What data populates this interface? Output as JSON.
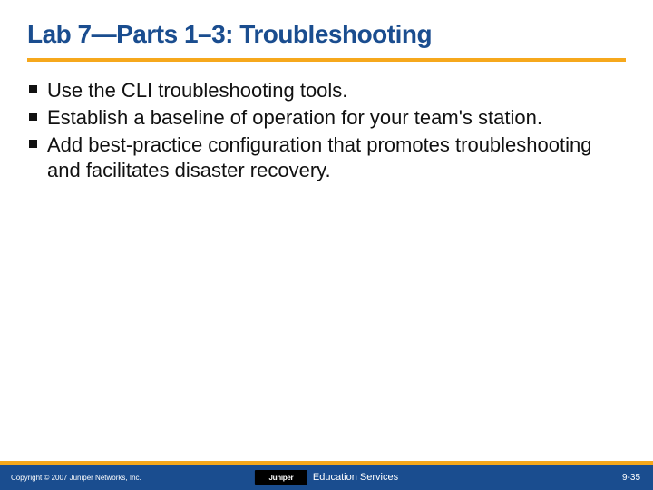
{
  "title": "Lab 7—Parts 1–3: Troubleshooting",
  "bullets": [
    "Use the CLI troubleshooting tools.",
    "Establish a baseline of operation for your team's station.",
    "Add best-practice configuration that promotes troubleshooting and facilitates disaster recovery."
  ],
  "footer": {
    "copyright": "Copyright © 2007 Juniper Networks, Inc.",
    "logo_text": "Juniper",
    "education": "Education Services",
    "page": "9-35"
  },
  "colors": {
    "title_color": "#1a4d8f",
    "accent_color": "#f6a81c",
    "footer_bg": "#1a4d8f",
    "body_text": "#111111",
    "background": "#ffffff"
  }
}
